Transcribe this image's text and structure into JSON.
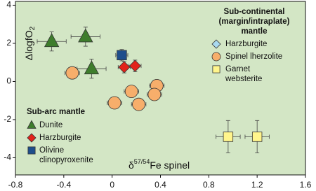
{
  "chart_data": {
    "type": "scatter",
    "x_label": {
      "prefix": "δ",
      "sup": "57/54",
      "main": "Fe spinel"
    },
    "y_label": {
      "main": "ΔlogfO",
      "sub": "2"
    },
    "xlim": [
      -0.8,
      1.6
    ],
    "xticks": [
      -0.8,
      -0.4,
      0,
      0.4,
      0.8,
      1.2,
      1.6
    ],
    "ylim": [
      -4.9,
      4.2
    ],
    "yticks": [
      -4,
      -2,
      0,
      2,
      4
    ],
    "background": "#d3e6c5",
    "legend_groups": [
      {
        "title": [
          "Sub-arc mantle"
        ]
      },
      {
        "title": [
          "Sub-continental",
          "(margin/intraplate)",
          "mantle"
        ]
      }
    ],
    "series": [
      {
        "name": [
          "Dunite"
        ],
        "group": 0,
        "marker": "triangle",
        "color": "#3e7d2c",
        "x": [
          -0.5,
          -0.22,
          -0.17
        ],
        "y": [
          2.1,
          2.35,
          0.67
        ],
        "xerr": [
          0.12,
          0.12,
          0.12
        ],
        "yerr": [
          0.5,
          0.5,
          0.5
        ]
      },
      {
        "name": [
          "Harzburgite"
        ],
        "group": 0,
        "marker": "diamond",
        "color": "#e2231a",
        "x": [
          0.1,
          0.19
        ],
        "y": [
          0.75,
          0.82
        ],
        "xerr": [
          0.05,
          0.05
        ],
        "yerr": [
          0.3,
          0.3
        ]
      },
      {
        "name": [
          "Olivine",
          "clinopyroxenite"
        ],
        "group": 0,
        "marker": "square",
        "color": "#1f4e8c",
        "x": [
          0.08
        ],
        "y": [
          1.38
        ],
        "xerr": [
          0.05
        ],
        "yerr": [
          0.3
        ]
      },
      {
        "name": [
          "Harzburgite"
        ],
        "group": 1,
        "marker": "diamond",
        "color": "#a9d9ef",
        "x": [],
        "y": [],
        "xerr": [],
        "yerr": []
      },
      {
        "name": [
          "Spinel lherzolite"
        ],
        "group": 1,
        "marker": "circle",
        "color": "#f7ae6b",
        "x": [
          -0.33,
          0.02,
          0.16,
          0.22,
          0.37,
          0.35
        ],
        "y": [
          0.45,
          -1.12,
          -0.52,
          -1.2,
          -0.22,
          -0.68
        ],
        "xerr": [
          0.06,
          0.06,
          0.06,
          0.06,
          0.06,
          0.06
        ],
        "yerr": [
          0.3,
          0.3,
          0.3,
          0.3,
          0.3,
          0.3
        ]
      },
      {
        "name": [
          "Garnet",
          "websterite"
        ],
        "group": 1,
        "marker": "square",
        "color": "#fff58c",
        "x": [
          0.96,
          1.2
        ],
        "y": [
          -2.9,
          -2.9
        ],
        "xerr": [
          0.1,
          0.1
        ],
        "yerr": [
          0.85,
          0.85
        ]
      }
    ]
  }
}
